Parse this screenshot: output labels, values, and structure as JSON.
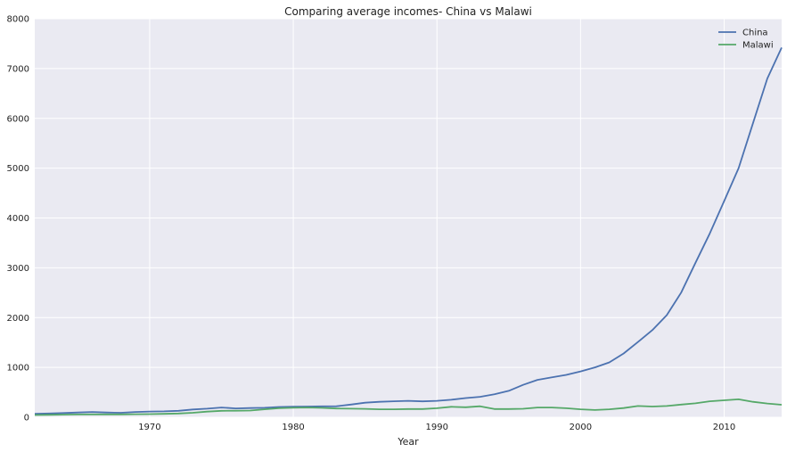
{
  "chart_data": {
    "type": "line",
    "title": "Comparing average incomes- China vs Malawi",
    "xlabel": "Year",
    "ylabel": "",
    "xlim": [
      1962,
      2014
    ],
    "ylim": [
      0,
      8000
    ],
    "x_ticks": [
      1970,
      1980,
      1990,
      2000,
      2010
    ],
    "y_ticks": [
      0,
      1000,
      2000,
      3000,
      4000,
      5000,
      6000,
      7000,
      8000
    ],
    "grid": true,
    "legend_position": "top-right",
    "background_color": "#eaeaf2",
    "grid_color": "#ffffff",
    "x": [
      1962,
      1963,
      1964,
      1965,
      1966,
      1967,
      1968,
      1969,
      1970,
      1971,
      1972,
      1973,
      1974,
      1975,
      1976,
      1977,
      1978,
      1979,
      1980,
      1981,
      1982,
      1983,
      1984,
      1985,
      1986,
      1987,
      1988,
      1989,
      1990,
      1991,
      1992,
      1993,
      1994,
      1995,
      1996,
      1997,
      1998,
      1999,
      2000,
      2001,
      2002,
      2003,
      2004,
      2005,
      2006,
      2007,
      2008,
      2009,
      2010,
      2011,
      2012,
      2013,
      2014
    ],
    "series": [
      {
        "name": "China",
        "color": "#4c72b0",
        "values": [
          70,
          75,
          85,
          95,
          105,
          95,
          90,
          105,
          115,
          118,
          128,
          155,
          172,
          195,
          178,
          185,
          190,
          205,
          212,
          215,
          218,
          220,
          255,
          292,
          310,
          320,
          330,
          318,
          330,
          350,
          385,
          410,
          460,
          530,
          650,
          750,
          800,
          850,
          920,
          1000,
          1100,
          1280,
          1510,
          1750,
          2050,
          2500,
          3100,
          3690,
          4340,
          5000,
          5900,
          6800,
          7420
        ]
      },
      {
        "name": "Malawi",
        "color": "#55a868",
        "values": [
          45,
          48,
          52,
          55,
          58,
          58,
          58,
          60,
          62,
          68,
          75,
          90,
          112,
          128,
          130,
          135,
          160,
          180,
          190,
          195,
          188,
          175,
          172,
          168,
          160,
          160,
          165,
          165,
          180,
          210,
          200,
          220,
          165,
          165,
          170,
          195,
          195,
          180,
          160,
          145,
          160,
          185,
          225,
          215,
          225,
          255,
          280,
          320,
          340,
          360,
          310,
          275,
          250
        ]
      }
    ]
  }
}
